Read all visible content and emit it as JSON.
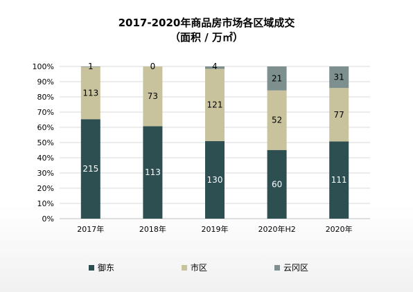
{
  "chart_data": {
    "type": "bar",
    "stacked": "percent",
    "title": "2017-2020年商品房市场各区域成交",
    "subtitle": "（面积 / 万㎡）",
    "categories": [
      "2017年",
      "2018年",
      "2019年",
      "2020年H2",
      "2020年"
    ],
    "series": [
      {
        "name": "御东",
        "values": [
          215,
          113,
          130,
          60,
          111
        ],
        "color": "#2e4f52"
      },
      {
        "name": "市区",
        "values": [
          113,
          73,
          121,
          52,
          77
        ],
        "color": "#c8c39d"
      },
      {
        "name": "云冈区",
        "values": [
          1,
          0,
          4,
          21,
          31
        ],
        "color": "#7d8f8f"
      }
    ],
    "yticks": [
      "0%",
      "10%",
      "20%",
      "30%",
      "40%",
      "50%",
      "60%",
      "70%",
      "80%",
      "90%",
      "100%"
    ],
    "ylim": [
      0,
      100
    ],
    "grid": true,
    "legend": "bottom"
  }
}
